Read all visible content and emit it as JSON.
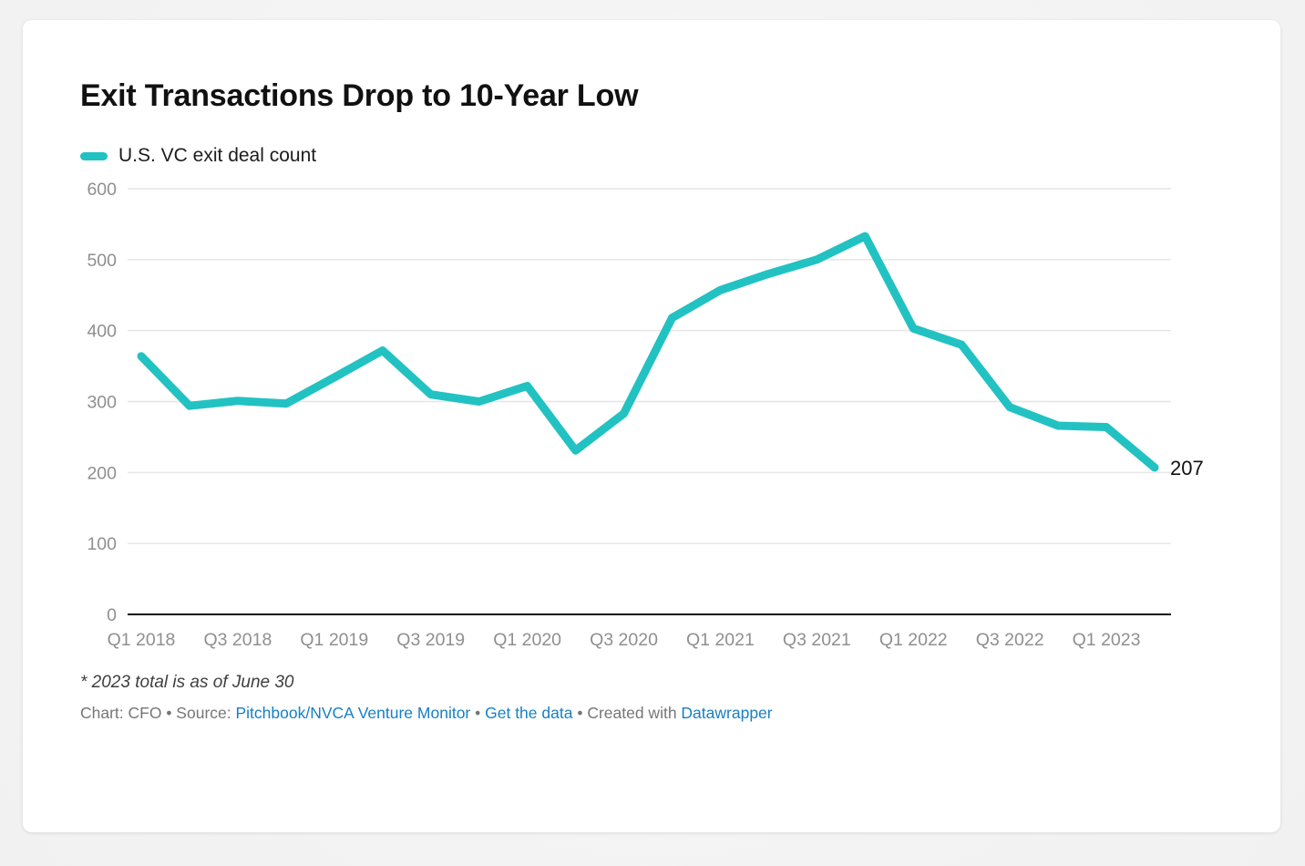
{
  "card": {
    "title": "Exit Transactions Drop to 10-Year Low"
  },
  "legend": {
    "label": "U.S. VC exit deal count"
  },
  "colors": {
    "accent": "#22c2c2",
    "grid": "#e6e6e6",
    "baseline": "#111111",
    "axis_text": "#8f8f8f",
    "end_label_text": "#111111",
    "link": "#1780c4",
    "card_bg": "#ffffff",
    "page_bg": "#f4f4f4"
  },
  "chart_data": {
    "type": "line",
    "title": "Exit Transactions Drop to 10-Year Low",
    "series_name": "U.S. VC exit deal count",
    "categories": [
      "Q1 2018",
      "Q2 2018",
      "Q3 2018",
      "Q4 2018",
      "Q1 2019",
      "Q2 2019",
      "Q3 2019",
      "Q4 2019",
      "Q1 2020",
      "Q2 2020",
      "Q3 2020",
      "Q4 2020",
      "Q1 2021",
      "Q2 2021",
      "Q3 2021",
      "Q4 2021",
      "Q1 2022",
      "Q2 2022",
      "Q3 2022",
      "Q4 2022",
      "Q1 2023",
      "Q2 2023"
    ],
    "values": [
      364,
      294,
      301,
      297,
      334,
      372,
      310,
      300,
      322,
      231,
      283,
      418,
      457,
      480,
      500,
      533,
      403,
      380,
      292,
      266,
      264,
      207
    ],
    "end_label": "207",
    "xlabel": "",
    "ylabel": "",
    "ylim": [
      0,
      600
    ],
    "yticks": [
      0,
      100,
      200,
      300,
      400,
      500,
      600
    ],
    "x_tick_indices": [
      0,
      2,
      4,
      6,
      8,
      10,
      12,
      14,
      16,
      18,
      20
    ],
    "grid": true,
    "legend_position": "top-left"
  },
  "footer": {
    "note": "* 2023 total is as of June 30",
    "attribution": [
      {
        "text": "Chart: CFO • Source: ",
        "link": false
      },
      {
        "text": "Pitchbook/NVCA Venture Monitor",
        "link": true
      },
      {
        "text": " • ",
        "link": false
      },
      {
        "text": "Get the data",
        "link": true
      },
      {
        "text": " • ",
        "link": false
      },
      {
        "text": "Created with ",
        "link": false
      },
      {
        "text": "Datawrapper",
        "link": true
      }
    ]
  }
}
